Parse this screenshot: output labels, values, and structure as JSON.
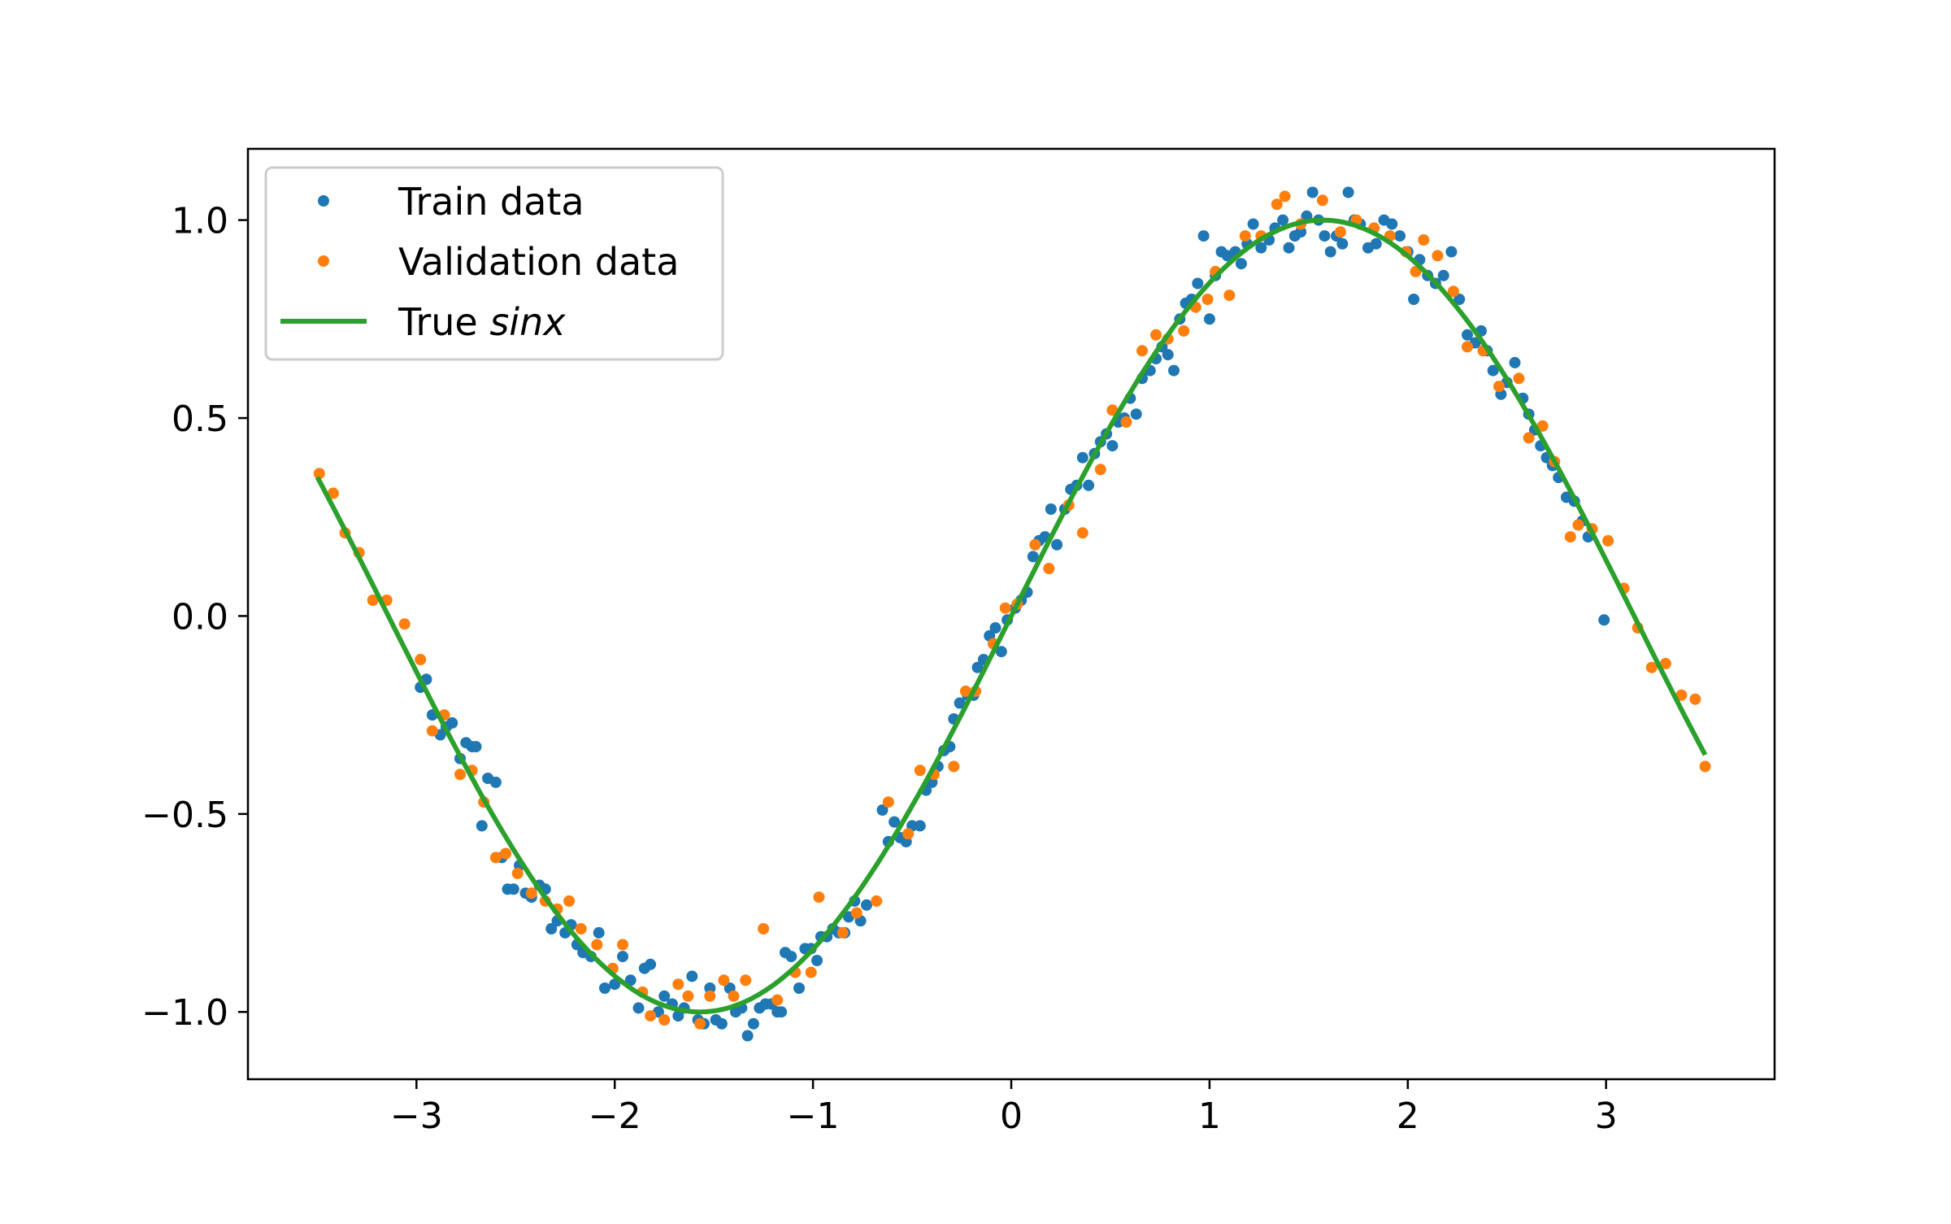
{
  "chart_data": {
    "type": "scatter",
    "title": "",
    "xlabel": "",
    "ylabel": "",
    "xlim": [
      -3.85,
      3.85
    ],
    "ylim": [
      -1.17,
      1.18
    ],
    "x_ticks": [
      -3,
      -2,
      -1,
      0,
      1,
      2,
      3
    ],
    "x_tick_labels": [
      "−3",
      "−2",
      "−1",
      "0",
      "1",
      "2",
      "3"
    ],
    "y_ticks": [
      -1.0,
      -0.5,
      0.0,
      0.5,
      1.0
    ],
    "y_tick_labels": [
      "−1.0",
      "−0.5",
      "0.0",
      "0.5",
      "1.0"
    ],
    "grid": false,
    "legend_position": "upper-left",
    "colors": {
      "train": "#1f77b4",
      "validation": "#ff7f0e",
      "true": "#2ca02c"
    },
    "series": [
      {
        "name": "Train data",
        "kind": "markers",
        "points": [
          [
            -2.98,
            -0.18
          ],
          [
            -2.95,
            -0.16
          ],
          [
            -2.92,
            -0.25
          ],
          [
            -2.88,
            -0.3
          ],
          [
            -2.85,
            -0.28
          ],
          [
            -2.82,
            -0.27
          ],
          [
            -2.78,
            -0.36
          ],
          [
            -2.75,
            -0.32
          ],
          [
            -2.72,
            -0.33
          ],
          [
            -2.7,
            -0.33
          ],
          [
            -2.67,
            -0.53
          ],
          [
            -2.64,
            -0.41
          ],
          [
            -2.6,
            -0.42
          ],
          [
            -2.57,
            -0.61
          ],
          [
            -2.54,
            -0.69
          ],
          [
            -2.51,
            -0.69
          ],
          [
            -2.48,
            -0.63
          ],
          [
            -2.45,
            -0.7
          ],
          [
            -2.42,
            -0.71
          ],
          [
            -2.38,
            -0.68
          ],
          [
            -2.35,
            -0.69
          ],
          [
            -2.32,
            -0.79
          ],
          [
            -2.29,
            -0.77
          ],
          [
            -2.25,
            -0.8
          ],
          [
            -2.22,
            -0.78
          ],
          [
            -2.19,
            -0.83
          ],
          [
            -2.16,
            -0.85
          ],
          [
            -2.12,
            -0.86
          ],
          [
            -2.08,
            -0.8
          ],
          [
            -2.05,
            -0.94
          ],
          [
            -2.0,
            -0.93
          ],
          [
            -1.96,
            -0.86
          ],
          [
            -1.92,
            -0.92
          ],
          [
            -1.88,
            -0.99
          ],
          [
            -1.85,
            -0.89
          ],
          [
            -1.82,
            -0.88
          ],
          [
            -1.78,
            -1.0
          ],
          [
            -1.75,
            -0.96
          ],
          [
            -1.71,
            -0.98
          ],
          [
            -1.68,
            -1.01
          ],
          [
            -1.65,
            -0.99
          ],
          [
            -1.61,
            -0.91
          ],
          [
            -1.58,
            -1.02
          ],
          [
            -1.55,
            -1.03
          ],
          [
            -1.52,
            -0.94
          ],
          [
            -1.49,
            -1.02
          ],
          [
            -1.46,
            -1.03
          ],
          [
            -1.42,
            -0.94
          ],
          [
            -1.39,
            -1.0
          ],
          [
            -1.36,
            -0.99
          ],
          [
            -1.33,
            -1.06
          ],
          [
            -1.3,
            -1.03
          ],
          [
            -1.27,
            -0.99
          ],
          [
            -1.24,
            -0.98
          ],
          [
            -1.21,
            -0.98
          ],
          [
            -1.18,
            -1.0
          ],
          [
            -1.16,
            -1.0
          ],
          [
            -1.14,
            -0.85
          ],
          [
            -1.11,
            -0.86
          ],
          [
            -1.07,
            -0.94
          ],
          [
            -1.04,
            -0.84
          ],
          [
            -1.01,
            -0.84
          ],
          [
            -0.98,
            -0.87
          ],
          [
            -0.96,
            -0.81
          ],
          [
            -0.93,
            -0.81
          ],
          [
            -0.9,
            -0.79
          ],
          [
            -0.87,
            -0.8
          ],
          [
            -0.84,
            -0.8
          ],
          [
            -0.82,
            -0.76
          ],
          [
            -0.79,
            -0.72
          ],
          [
            -0.76,
            -0.77
          ],
          [
            -0.73,
            -0.73
          ],
          [
            -0.65,
            -0.49
          ],
          [
            -0.62,
            -0.57
          ],
          [
            -0.59,
            -0.52
          ],
          [
            -0.56,
            -0.56
          ],
          [
            -0.53,
            -0.57
          ],
          [
            -0.5,
            -0.53
          ],
          [
            -0.46,
            -0.53
          ],
          [
            -0.43,
            -0.44
          ],
          [
            -0.4,
            -0.42
          ],
          [
            -0.37,
            -0.38
          ],
          [
            -0.34,
            -0.34
          ],
          [
            -0.31,
            -0.33
          ],
          [
            -0.29,
            -0.26
          ],
          [
            -0.26,
            -0.22
          ],
          [
            -0.22,
            -0.2
          ],
          [
            -0.19,
            -0.2
          ],
          [
            -0.17,
            -0.13
          ],
          [
            -0.14,
            -0.11
          ],
          [
            -0.11,
            -0.05
          ],
          [
            -0.08,
            -0.03
          ],
          [
            -0.05,
            -0.09
          ],
          [
            -0.02,
            -0.01
          ],
          [
            0.02,
            0.02
          ],
          [
            0.05,
            0.04
          ],
          [
            0.08,
            0.06
          ],
          [
            0.11,
            0.15
          ],
          [
            0.14,
            0.19
          ],
          [
            0.17,
            0.2
          ],
          [
            0.2,
            0.27
          ],
          [
            0.23,
            0.18
          ],
          [
            0.27,
            0.27
          ],
          [
            0.3,
            0.32
          ],
          [
            0.33,
            0.33
          ],
          [
            0.36,
            0.4
          ],
          [
            0.39,
            0.33
          ],
          [
            0.42,
            0.41
          ],
          [
            0.45,
            0.44
          ],
          [
            0.48,
            0.46
          ],
          [
            0.51,
            0.43
          ],
          [
            0.54,
            0.49
          ],
          [
            0.57,
            0.5
          ],
          [
            0.6,
            0.55
          ],
          [
            0.63,
            0.51
          ],
          [
            0.66,
            0.6
          ],
          [
            0.7,
            0.62
          ],
          [
            0.73,
            0.65
          ],
          [
            0.76,
            0.68
          ],
          [
            0.79,
            0.66
          ],
          [
            0.82,
            0.62
          ],
          [
            0.85,
            0.75
          ],
          [
            0.88,
            0.79
          ],
          [
            0.91,
            0.8
          ],
          [
            0.94,
            0.84
          ],
          [
            0.97,
            0.96
          ],
          [
            1.0,
            0.75
          ],
          [
            1.03,
            0.86
          ],
          [
            1.06,
            0.92
          ],
          [
            1.09,
            0.91
          ],
          [
            1.13,
            0.92
          ],
          [
            1.16,
            0.89
          ],
          [
            1.19,
            0.94
          ],
          [
            1.22,
            0.99
          ],
          [
            1.26,
            0.93
          ],
          [
            1.3,
            0.95
          ],
          [
            1.33,
            0.98
          ],
          [
            1.37,
            1.0
          ],
          [
            1.4,
            0.93
          ],
          [
            1.43,
            0.96
          ],
          [
            1.46,
            0.97
          ],
          [
            1.49,
            1.01
          ],
          [
            1.52,
            1.07
          ],
          [
            1.55,
            1.0
          ],
          [
            1.58,
            0.96
          ],
          [
            1.61,
            0.92
          ],
          [
            1.64,
            0.96
          ],
          [
            1.67,
            0.94
          ],
          [
            1.7,
            1.07
          ],
          [
            1.73,
            1.0
          ],
          [
            1.76,
            0.99
          ],
          [
            1.8,
            0.93
          ],
          [
            1.84,
            0.94
          ],
          [
            1.88,
            1.0
          ],
          [
            1.92,
            0.99
          ],
          [
            1.96,
            0.96
          ],
          [
            2.0,
            0.92
          ],
          [
            2.03,
            0.8
          ],
          [
            2.06,
            0.9
          ],
          [
            2.1,
            0.86
          ],
          [
            2.14,
            0.84
          ],
          [
            2.18,
            0.86
          ],
          [
            2.22,
            0.92
          ],
          [
            2.26,
            0.8
          ],
          [
            2.3,
            0.71
          ],
          [
            2.34,
            0.69
          ],
          [
            2.37,
            0.72
          ],
          [
            2.4,
            0.67
          ],
          [
            2.43,
            0.62
          ],
          [
            2.47,
            0.56
          ],
          [
            2.5,
            0.59
          ],
          [
            2.54,
            0.64
          ],
          [
            2.58,
            0.55
          ],
          [
            2.61,
            0.51
          ],
          [
            2.64,
            0.47
          ],
          [
            2.67,
            0.43
          ],
          [
            2.7,
            0.4
          ],
          [
            2.73,
            0.38
          ],
          [
            2.76,
            0.35
          ],
          [
            2.8,
            0.3
          ],
          [
            2.84,
            0.29
          ],
          [
            2.88,
            0.24
          ],
          [
            2.91,
            0.2
          ],
          [
            2.99,
            -0.01
          ]
        ]
      },
      {
        "name": "Validation data",
        "kind": "markers",
        "points": [
          [
            -3.49,
            0.36
          ],
          [
            -3.42,
            0.31
          ],
          [
            -3.36,
            0.21
          ],
          [
            -3.29,
            0.16
          ],
          [
            -3.22,
            0.04
          ],
          [
            -3.15,
            0.04
          ],
          [
            -3.06,
            -0.02
          ],
          [
            -2.98,
            -0.11
          ],
          [
            -2.92,
            -0.29
          ],
          [
            -2.86,
            -0.25
          ],
          [
            -2.78,
            -0.4
          ],
          [
            -2.72,
            -0.39
          ],
          [
            -2.66,
            -0.47
          ],
          [
            -2.6,
            -0.61
          ],
          [
            -2.55,
            -0.6
          ],
          [
            -2.49,
            -0.65
          ],
          [
            -2.42,
            -0.7
          ],
          [
            -2.35,
            -0.72
          ],
          [
            -2.29,
            -0.74
          ],
          [
            -2.23,
            -0.72
          ],
          [
            -2.17,
            -0.79
          ],
          [
            -2.09,
            -0.83
          ],
          [
            -2.01,
            -0.89
          ],
          [
            -1.96,
            -0.83
          ],
          [
            -1.86,
            -0.95
          ],
          [
            -1.82,
            -1.01
          ],
          [
            -1.75,
            -1.02
          ],
          [
            -1.68,
            -0.93
          ],
          [
            -1.63,
            -0.96
          ],
          [
            -1.57,
            -1.03
          ],
          [
            -1.52,
            -0.96
          ],
          [
            -1.45,
            -0.92
          ],
          [
            -1.4,
            -0.96
          ],
          [
            -1.34,
            -0.92
          ],
          [
            -1.25,
            -0.79
          ],
          [
            -1.18,
            -0.97
          ],
          [
            -1.09,
            -0.9
          ],
          [
            -1.01,
            -0.9
          ],
          [
            -0.97,
            -0.71
          ],
          [
            -0.85,
            -0.8
          ],
          [
            -0.78,
            -0.75
          ],
          [
            -0.68,
            -0.72
          ],
          [
            -0.62,
            -0.47
          ],
          [
            -0.52,
            -0.55
          ],
          [
            -0.46,
            -0.39
          ],
          [
            -0.39,
            -0.4
          ],
          [
            -0.29,
            -0.38
          ],
          [
            -0.23,
            -0.19
          ],
          [
            -0.18,
            -0.19
          ],
          [
            -0.09,
            -0.07
          ],
          [
            -0.03,
            0.02
          ],
          [
            0.03,
            0.03
          ],
          [
            0.12,
            0.18
          ],
          [
            0.19,
            0.12
          ],
          [
            0.29,
            0.28
          ],
          [
            0.36,
            0.21
          ],
          [
            0.45,
            0.37
          ],
          [
            0.51,
            0.52
          ],
          [
            0.58,
            0.49
          ],
          [
            0.66,
            0.67
          ],
          [
            0.73,
            0.71
          ],
          [
            0.79,
            0.7
          ],
          [
            0.87,
            0.72
          ],
          [
            0.93,
            0.78
          ],
          [
            0.99,
            0.8
          ],
          [
            1.03,
            0.87
          ],
          [
            1.1,
            0.81
          ],
          [
            1.18,
            0.96
          ],
          [
            1.26,
            0.96
          ],
          [
            1.34,
            1.04
          ],
          [
            1.38,
            1.06
          ],
          [
            1.46,
            0.99
          ],
          [
            1.57,
            1.05
          ],
          [
            1.66,
            0.97
          ],
          [
            1.74,
            1.0
          ],
          [
            1.83,
            0.98
          ],
          [
            1.91,
            0.96
          ],
          [
            1.99,
            0.92
          ],
          [
            2.04,
            0.87
          ],
          [
            2.08,
            0.95
          ],
          [
            2.15,
            0.91
          ],
          [
            2.23,
            0.82
          ],
          [
            2.3,
            0.68
          ],
          [
            2.38,
            0.67
          ],
          [
            2.46,
            0.58
          ],
          [
            2.56,
            0.6
          ],
          [
            2.61,
            0.45
          ],
          [
            2.68,
            0.48
          ],
          [
            2.74,
            0.39
          ],
          [
            2.82,
            0.2
          ],
          [
            2.86,
            0.23
          ],
          [
            2.93,
            0.22
          ],
          [
            3.01,
            0.19
          ],
          [
            3.09,
            0.07
          ],
          [
            3.16,
            -0.03
          ],
          [
            3.23,
            -0.13
          ],
          [
            3.3,
            -0.12
          ],
          [
            3.38,
            -0.2
          ],
          [
            3.45,
            -0.21
          ],
          [
            3.5,
            -0.38
          ]
        ]
      },
      {
        "name": "True ",
        "name_italic": "sinx",
        "kind": "line",
        "function": "sin",
        "x_range": [
          -3.5,
          3.5
        ]
      }
    ]
  }
}
